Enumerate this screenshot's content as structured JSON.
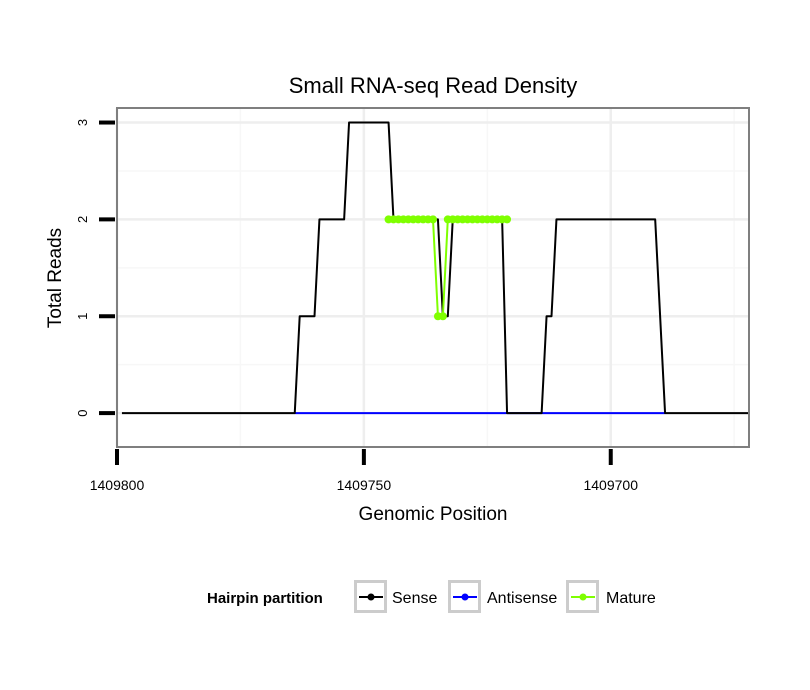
{
  "chart_data": {
    "type": "line",
    "title": "Small RNA-seq Read Density",
    "xlabel": "Genomic Position",
    "ylabel": "Total Reads",
    "x_reversed": true,
    "xlim": [
      1409800,
      1409672
    ],
    "ylim": [
      -0.35,
      3.15
    ],
    "x_ticks": [
      1409800,
      1409750,
      1409700
    ],
    "x_tick_labels": [
      "1409800",
      "1409750",
      "1409700"
    ],
    "y_ticks": [
      0,
      1,
      2,
      3
    ],
    "y_tick_labels": [
      "0",
      "1",
      "2",
      "3"
    ],
    "grid": true,
    "legend": {
      "title": "Hairpin partition",
      "position": "bottom"
    },
    "series": [
      {
        "name": "Sense",
        "color": "#000000",
        "style": "line",
        "points": [
          [
            1409799,
            0
          ],
          [
            1409764,
            0
          ],
          [
            1409763,
            1
          ],
          [
            1409760,
            1
          ],
          [
            1409759,
            2
          ],
          [
            1409754,
            2
          ],
          [
            1409753,
            3
          ],
          [
            1409745,
            3
          ],
          [
            1409744,
            2
          ],
          [
            1409735,
            2
          ],
          [
            1409734,
            1
          ],
          [
            1409733,
            1
          ],
          [
            1409732,
            2
          ],
          [
            1409722,
            2
          ],
          [
            1409721,
            0
          ],
          [
            1409714,
            0
          ],
          [
            1409713,
            1
          ],
          [
            1409712,
            1
          ],
          [
            1409711,
            2
          ],
          [
            1409691,
            2
          ],
          [
            1409689,
            0
          ],
          [
            1409672,
            0
          ]
        ]
      },
      {
        "name": "Antisense",
        "color": "#0000ff",
        "style": "line",
        "points": [
          [
            1409764,
            0
          ],
          [
            1409689,
            0
          ]
        ]
      },
      {
        "name": "Mature",
        "color": "#7fff00",
        "style": "line+points",
        "points": [
          [
            1409745,
            2
          ],
          [
            1409744,
            2
          ],
          [
            1409743,
            2
          ],
          [
            1409742,
            2
          ],
          [
            1409741,
            2
          ],
          [
            1409740,
            2
          ],
          [
            1409739,
            2
          ],
          [
            1409738,
            2
          ],
          [
            1409737,
            2
          ],
          [
            1409736,
            2
          ],
          [
            1409735,
            1
          ],
          [
            1409734,
            1
          ],
          [
            1409733,
            2
          ],
          [
            1409732,
            2
          ],
          [
            1409731,
            2
          ],
          [
            1409730,
            2
          ],
          [
            1409729,
            2
          ],
          [
            1409728,
            2
          ],
          [
            1409727,
            2
          ],
          [
            1409726,
            2
          ],
          [
            1409725,
            2
          ],
          [
            1409724,
            2
          ],
          [
            1409723,
            2
          ],
          [
            1409722,
            2
          ],
          [
            1409721,
            2
          ]
        ]
      }
    ]
  }
}
